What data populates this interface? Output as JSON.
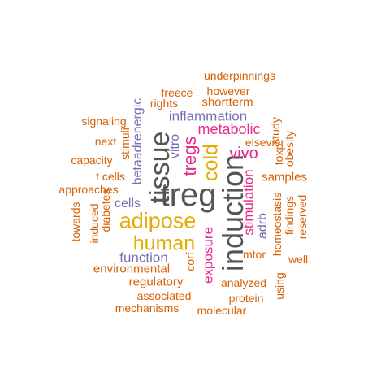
{
  "colors": {
    "orange": "#d95f02",
    "gold": "#e6ab02",
    "purple": "#7570b3",
    "magenta": "#e7298a",
    "gray": "#555555"
  },
  "words": [
    {
      "text": "treg",
      "color": "gray"
    },
    {
      "text": "tissue",
      "color": "gray"
    },
    {
      "text": "induction",
      "color": "gray"
    },
    {
      "text": "adipose",
      "color": "gold"
    },
    {
      "text": "human",
      "color": "gold"
    },
    {
      "text": "cold",
      "color": "gold"
    },
    {
      "text": "tregs",
      "color": "magenta"
    },
    {
      "text": "metabolic",
      "color": "magenta"
    },
    {
      "text": "vivo",
      "color": "magenta"
    },
    {
      "text": "stimulation",
      "color": "magenta"
    },
    {
      "text": "exposure",
      "color": "magenta"
    },
    {
      "text": "inflammation",
      "color": "purple"
    },
    {
      "text": "function",
      "color": "purple"
    },
    {
      "text": "cells",
      "color": "purple"
    },
    {
      "text": "betaadrenergic",
      "color": "purple"
    },
    {
      "text": "vitro",
      "color": "purple"
    },
    {
      "text": "adrb",
      "color": "purple"
    },
    {
      "text": "underpinnings",
      "color": "orange"
    },
    {
      "text": "freece",
      "color": "orange"
    },
    {
      "text": "however",
      "color": "orange"
    },
    {
      "text": "rights",
      "color": "orange"
    },
    {
      "text": "shortterm",
      "color": "orange"
    },
    {
      "text": "signaling",
      "color": "orange"
    },
    {
      "text": "next",
      "color": "orange"
    },
    {
      "text": "stimuli",
      "color": "orange"
    },
    {
      "text": "capacity",
      "color": "orange"
    },
    {
      "text": "t cells",
      "color": "orange"
    },
    {
      "text": "approaches",
      "color": "orange"
    },
    {
      "text": "towards",
      "color": "orange"
    },
    {
      "text": "induced",
      "color": "orange"
    },
    {
      "text": "diabetes",
      "color": "orange"
    },
    {
      "text": "elsevier",
      "color": "orange"
    },
    {
      "text": "foxp",
      "color": "orange"
    },
    {
      "text": "study",
      "color": "orange"
    },
    {
      "text": "obesity",
      "color": "orange"
    },
    {
      "text": "samples",
      "color": "orange"
    },
    {
      "text": "homeostasis",
      "color": "orange"
    },
    {
      "text": "findings",
      "color": "orange"
    },
    {
      "text": "reserved",
      "color": "orange"
    },
    {
      "text": "mtor",
      "color": "orange"
    },
    {
      "text": "well",
      "color": "orange"
    },
    {
      "text": "environmental",
      "color": "orange"
    },
    {
      "text": "corf",
      "color": "orange"
    },
    {
      "text": "regulatory",
      "color": "orange"
    },
    {
      "text": "analyzed",
      "color": "orange"
    },
    {
      "text": "using",
      "color": "orange"
    },
    {
      "text": "associated",
      "color": "orange"
    },
    {
      "text": "protein",
      "color": "orange"
    },
    {
      "text": "mechanisms",
      "color": "orange"
    },
    {
      "text": "molecular",
      "color": "orange"
    }
  ]
}
